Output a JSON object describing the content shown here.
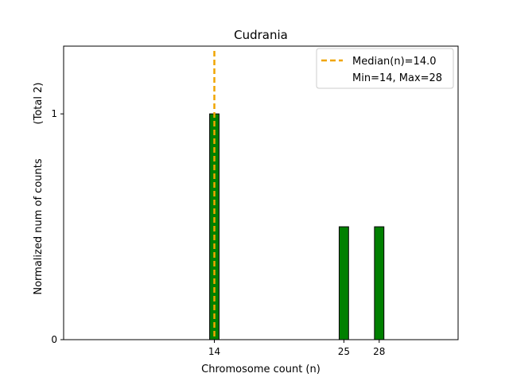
{
  "chart_data": {
    "type": "bar",
    "title": "Cudrania",
    "xlabel": "Chromosome count (n)",
    "ylabel": "Normalized num of counts",
    "ylabel_total": "(Total 2)",
    "x": [
      14,
      25,
      28
    ],
    "values": [
      1.0,
      0.5,
      0.5
    ],
    "bar_width": 0.8,
    "xlim": [
      1.2,
      34.7
    ],
    "ylim": [
      0,
      1.3
    ],
    "xticks": [
      14,
      25,
      28
    ],
    "yticks": [
      0,
      1
    ],
    "grid": false,
    "bar_color": "#008000",
    "bar_edge_color": "#000000",
    "median": {
      "value": 14.0,
      "label": "Median(n)=14.0",
      "color": "#f0a500"
    },
    "legend": {
      "placement": "top-right",
      "entries": [
        "Median(n)=14.0",
        "Min=14, Max=28"
      ]
    }
  }
}
